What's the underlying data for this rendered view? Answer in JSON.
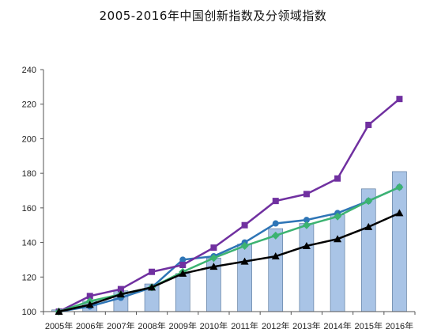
{
  "chart_data": {
    "type": "bar",
    "title": "2005-2016年中国创新指数及分领域指数",
    "xlabel": "",
    "ylabel": "",
    "categories": [
      "2005年",
      "2006年",
      "2007年",
      "2008年",
      "2009年",
      "2010年",
      "2011年",
      "2012年",
      "2013年",
      "2014年",
      "2015年",
      "2016年"
    ],
    "ylim": [
      100,
      240
    ],
    "yticks": [
      100,
      120,
      140,
      160,
      180,
      200,
      220,
      240
    ],
    "grid": false,
    "legend": "none",
    "bar_series": {
      "values": [
        101,
        106,
        112,
        116,
        122,
        131,
        139,
        148,
        151,
        156,
        171,
        181
      ],
      "color": "#a9c4e6"
    },
    "series": [
      {
        "values": [
          100,
          103,
          108,
          114,
          130,
          132,
          140,
          151,
          153,
          157,
          164,
          172
        ],
        "color": "#2e75b6",
        "marker": "circle"
      },
      {
        "values": [
          100,
          109,
          113,
          123,
          127,
          137,
          150,
          164,
          168,
          177,
          208,
          223
        ],
        "color": "#7030a0",
        "marker": "square"
      },
      {
        "values": [
          100,
          106,
          110,
          114,
          123,
          131,
          138,
          144,
          150,
          155,
          164,
          172
        ],
        "color": "#3cb371",
        "marker": "diamond"
      },
      {
        "values": [
          100,
          104,
          110,
          114,
          122,
          126,
          129,
          132,
          138,
          142,
          149,
          157
        ],
        "color": "#000000",
        "marker": "triangle"
      }
    ]
  }
}
